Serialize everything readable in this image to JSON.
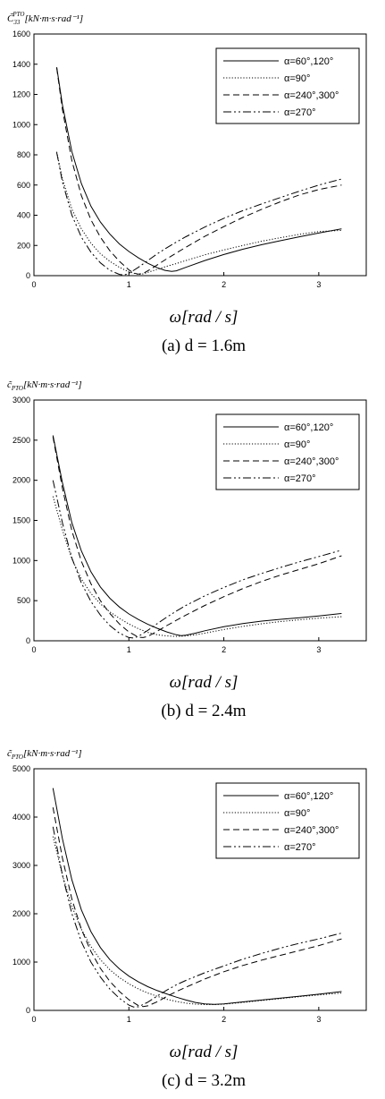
{
  "chart_data": [
    {
      "type": "line",
      "ylabel": "C̃33PTO[kN·m·s·rad⁻¹]",
      "xlabel": "ω[rad / s]",
      "caption": "(a)  d = 1.6m",
      "xlim": [
        0,
        3.5
      ],
      "ylim": [
        0,
        1600
      ],
      "xticks": [
        0,
        1,
        2,
        3
      ],
      "yticks": [
        0,
        200,
        400,
        600,
        800,
        1000,
        1200,
        1400,
        1600
      ],
      "legend": "top-right",
      "series": [
        {
          "name": "α=60°,120°",
          "style": "solid",
          "x": [
            0.24,
            0.3,
            0.4,
            0.5,
            0.6,
            0.7,
            0.8,
            0.9,
            1.0,
            1.1,
            1.2,
            1.3,
            1.38,
            1.45,
            1.5,
            1.6,
            1.8,
            2.0,
            2.2,
            2.4,
            2.6,
            2.8,
            3.0,
            3.24
          ],
          "y": [
            1380,
            1130,
            820,
            610,
            460,
            355,
            275,
            210,
            160,
            118,
            82,
            52,
            35,
            28,
            32,
            55,
            100,
            140,
            175,
            205,
            232,
            258,
            282,
            310
          ]
        },
        {
          "name": "α=90°",
          "style": "dotted",
          "x": [
            0.24,
            0.3,
            0.4,
            0.5,
            0.6,
            0.7,
            0.8,
            0.9,
            1.0,
            1.1,
            1.15,
            1.2,
            1.3,
            1.4,
            1.5,
            1.6,
            1.8,
            2.0,
            2.2,
            2.4,
            2.6,
            2.8,
            3.0,
            3.24
          ],
          "y": [
            820,
            640,
            440,
            310,
            215,
            145,
            95,
            55,
            25,
            8,
            12,
            22,
            42,
            62,
            80,
            100,
            138,
            170,
            200,
            228,
            252,
            274,
            292,
            300
          ]
        },
        {
          "name": "α=240°,300°",
          "style": "dashed",
          "x": [
            0.24,
            0.3,
            0.4,
            0.5,
            0.6,
            0.7,
            0.8,
            0.9,
            1.0,
            1.05,
            1.1,
            1.15,
            1.2,
            1.3,
            1.4,
            1.5,
            1.6,
            1.8,
            2.0,
            2.2,
            2.4,
            2.6,
            2.8,
            3.0,
            3.24
          ],
          "y": [
            1375,
            1100,
            760,
            530,
            370,
            255,
            165,
            95,
            38,
            18,
            10,
            15,
            32,
            72,
            112,
            150,
            188,
            260,
            325,
            385,
            440,
            490,
            535,
            570,
            600
          ]
        },
        {
          "name": "α=270°",
          "style": "dashdot",
          "x": [
            0.24,
            0.3,
            0.4,
            0.5,
            0.6,
            0.7,
            0.8,
            0.9,
            0.95,
            1.0,
            1.1,
            1.2,
            1.3,
            1.4,
            1.5,
            1.6,
            1.8,
            2.0,
            2.2,
            2.4,
            2.6,
            2.8,
            3.0,
            3.24
          ],
          "y": [
            815,
            620,
            400,
            255,
            155,
            85,
            35,
            8,
            5,
            15,
            55,
            100,
            145,
            185,
            222,
            258,
            322,
            380,
            430,
            475,
            518,
            560,
            600,
            640
          ]
        }
      ]
    },
    {
      "type": "line",
      "ylabel": "c̃PTO[kN·m·s·rad⁻¹]",
      "xlabel": "ω[rad / s]",
      "caption": "(b)  d = 2.4m",
      "xlim": [
        0,
        3.5
      ],
      "ylim": [
        0,
        3000
      ],
      "xticks": [
        0,
        1,
        2,
        3
      ],
      "yticks": [
        0,
        500,
        1000,
        1500,
        2000,
        2500,
        3000
      ],
      "legend": "top-right",
      "series": [
        {
          "name": "α=60°,120°",
          "style": "solid",
          "x": [
            0.2,
            0.3,
            0.4,
            0.5,
            0.6,
            0.7,
            0.8,
            0.9,
            1.0,
            1.1,
            1.2,
            1.3,
            1.4,
            1.5,
            1.55,
            1.6,
            1.7,
            1.8,
            2.0,
            2.2,
            2.4,
            2.6,
            2.8,
            3.0,
            3.24
          ],
          "y": [
            2560,
            1970,
            1470,
            1120,
            860,
            670,
            530,
            420,
            335,
            265,
            205,
            155,
            110,
            75,
            65,
            70,
            95,
            125,
            175,
            215,
            245,
            268,
            288,
            310,
            340
          ]
        },
        {
          "name": "α=90°",
          "style": "dotted",
          "x": [
            0.2,
            0.3,
            0.4,
            0.5,
            0.6,
            0.7,
            0.8,
            0.9,
            1.0,
            1.1,
            1.2,
            1.3,
            1.4,
            1.5,
            1.6,
            1.7,
            1.8,
            2.0,
            2.2,
            2.4,
            2.6,
            2.8,
            3.0,
            3.24
          ],
          "y": [
            1800,
            1380,
            1020,
            770,
            590,
            460,
            360,
            280,
            210,
            150,
            105,
            75,
            60,
            55,
            60,
            75,
            95,
            140,
            180,
            212,
            240,
            262,
            282,
            300
          ]
        },
        {
          "name": "α=240°,300°",
          "style": "dashed",
          "x": [
            0.2,
            0.3,
            0.4,
            0.5,
            0.6,
            0.7,
            0.8,
            0.9,
            1.0,
            1.1,
            1.15,
            1.2,
            1.3,
            1.4,
            1.5,
            1.6,
            1.8,
            2.0,
            2.2,
            2.4,
            2.6,
            2.8,
            3.0,
            3.24
          ],
          "y": [
            2540,
            1900,
            1370,
            990,
            710,
            500,
            340,
            210,
            110,
            45,
            40,
            55,
            120,
            190,
            255,
            320,
            440,
            550,
            650,
            740,
            820,
            890,
            960,
            1060
          ]
        },
        {
          "name": "α=270°",
          "style": "dashdot",
          "x": [
            0.2,
            0.3,
            0.4,
            0.5,
            0.6,
            0.7,
            0.8,
            0.9,
            1.0,
            1.05,
            1.1,
            1.2,
            1.3,
            1.4,
            1.5,
            1.6,
            1.8,
            2.0,
            2.2,
            2.4,
            2.6,
            2.8,
            3.0,
            3.24
          ],
          "y": [
            2000,
            1470,
            1030,
            720,
            490,
            320,
            190,
            95,
            40,
            35,
            55,
            130,
            215,
            295,
            370,
            440,
            560,
            665,
            760,
            840,
            915,
            985,
            1050,
            1130
          ]
        }
      ]
    },
    {
      "type": "line",
      "ylabel": "c̃PTO[kN·m·s·rad⁻¹]",
      "xlabel": "ω[rad / s]",
      "caption": "(c)  d = 3.2m",
      "xlim": [
        0,
        3.5
      ],
      "ylim": [
        0,
        5000
      ],
      "xticks": [
        0,
        1,
        2,
        3
      ],
      "yticks": [
        0,
        1000,
        2000,
        3000,
        4000,
        5000
      ],
      "legend": "top-right",
      "series": [
        {
          "name": "α=60°,120°",
          "style": "solid",
          "x": [
            0.2,
            0.3,
            0.4,
            0.5,
            0.6,
            0.7,
            0.8,
            0.9,
            1.0,
            1.1,
            1.2,
            1.3,
            1.4,
            1.5,
            1.6,
            1.7,
            1.8,
            1.9,
            2.0,
            2.2,
            2.4,
            2.6,
            2.8,
            3.0,
            3.24
          ],
          "y": [
            4600,
            3550,
            2700,
            2080,
            1630,
            1300,
            1050,
            860,
            710,
            590,
            490,
            410,
            340,
            275,
            215,
            165,
            135,
            125,
            135,
            175,
            215,
            255,
            295,
            335,
            390
          ]
        },
        {
          "name": "α=90°",
          "style": "dotted",
          "x": [
            0.2,
            0.3,
            0.4,
            0.5,
            0.6,
            0.7,
            0.8,
            0.9,
            1.0,
            1.1,
            1.2,
            1.3,
            1.4,
            1.5,
            1.6,
            1.7,
            1.8,
            1.9,
            2.0,
            2.2,
            2.4,
            2.6,
            2.8,
            3.0,
            3.24
          ],
          "y": [
            3600,
            2800,
            2150,
            1680,
            1320,
            1050,
            840,
            680,
            550,
            445,
            360,
            290,
            230,
            185,
            150,
            130,
            120,
            120,
            130,
            165,
            205,
            245,
            285,
            320,
            360
          ]
        },
        {
          "name": "α=240°,300°",
          "style": "dashed",
          "x": [
            0.2,
            0.3,
            0.4,
            0.5,
            0.6,
            0.7,
            0.8,
            0.9,
            1.0,
            1.1,
            1.15,
            1.2,
            1.3,
            1.4,
            1.5,
            1.6,
            1.8,
            2.0,
            2.2,
            2.4,
            2.6,
            2.8,
            3.0,
            3.24
          ],
          "y": [
            4200,
            3150,
            2300,
            1680,
            1220,
            870,
            600,
            390,
            220,
            100,
            80,
            95,
            180,
            290,
            390,
            480,
            650,
            800,
            930,
            1040,
            1140,
            1240,
            1340,
            1480
          ]
        },
        {
          "name": "α=270°",
          "style": "dashdot",
          "x": [
            0.2,
            0.3,
            0.4,
            0.5,
            0.6,
            0.7,
            0.8,
            0.9,
            1.0,
            1.05,
            1.1,
            1.2,
            1.3,
            1.4,
            1.5,
            1.6,
            1.8,
            2.0,
            2.2,
            2.4,
            2.6,
            2.8,
            3.0,
            3.24
          ],
          "y": [
            3800,
            2800,
            2000,
            1420,
            1000,
            690,
            440,
            250,
            110,
            70,
            75,
            170,
            300,
            420,
            530,
            620,
            780,
            920,
            1060,
            1180,
            1290,
            1390,
            1480,
            1600
          ]
        }
      ]
    }
  ]
}
